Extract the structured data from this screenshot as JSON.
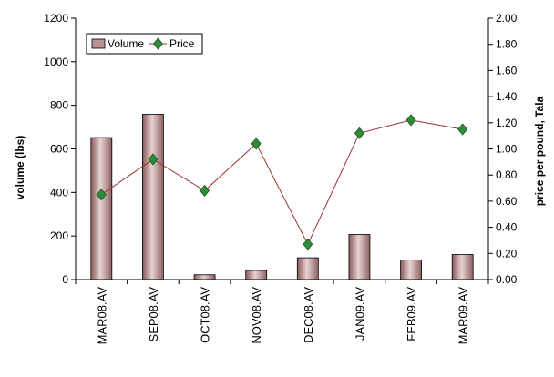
{
  "chart_data": {
    "type": "bar",
    "categories": [
      "MAR08.AV",
      "SEP08.AV",
      "OCT08.AV",
      "NOV08.AV",
      "DEC08.AV",
      "JAN09.AV",
      "FEB09.AV",
      "MAR09.AV"
    ],
    "series": [
      {
        "name": "Volume",
        "type": "bar",
        "axis": "left",
        "values": [
          652,
          759,
          22,
          42,
          100,
          207,
          90,
          115
        ],
        "color": "#b89393"
      },
      {
        "name": "Price",
        "type": "line",
        "axis": "right",
        "values": [
          0.65,
          0.92,
          0.68,
          1.04,
          0.27,
          1.12,
          1.22,
          1.15
        ],
        "color": "#2e8b3a",
        "line_color": "#a03030"
      }
    ],
    "xlabel": "",
    "ylabel": "volume (lbs)",
    "ylabel_right": "price per pound, Tala",
    "ylim": [
      0,
      1200
    ],
    "ylim_right": [
      0,
      2.0
    ],
    "yticks": [
      "0",
      "200",
      "400",
      "600",
      "800",
      "1000",
      "1200"
    ],
    "yticks_right": [
      "0.00",
      "0.20",
      "0.40",
      "0.60",
      "0.80",
      "1.00",
      "1.20",
      "1.40",
      "1.60",
      "1.80",
      "2.00"
    ],
    "legend_position": "top-left",
    "grid": false
  }
}
